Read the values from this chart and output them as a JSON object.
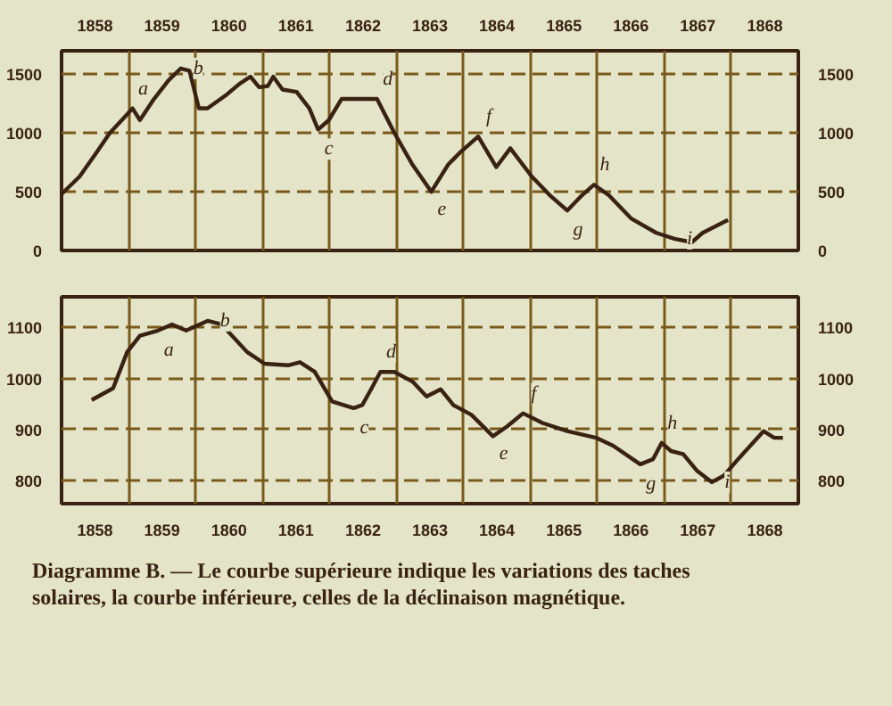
{
  "chart_data": [
    {
      "type": "line",
      "xlim": [
        1858,
        1869
      ],
      "xticks": [
        {
          "value": 1858.5,
          "label": "1858"
        },
        {
          "value": 1859.5,
          "label": "1859"
        },
        {
          "value": 1860.5,
          "label": "1860"
        },
        {
          "value": 1861.5,
          "label": "1861"
        },
        {
          "value": 1862.5,
          "label": "1862"
        },
        {
          "value": 1863.5,
          "label": "1863"
        },
        {
          "value": 1864.5,
          "label": "1864"
        },
        {
          "value": 1865.5,
          "label": "1865"
        },
        {
          "value": 1866.5,
          "label": "1866"
        },
        {
          "value": 1867.5,
          "label": "1867"
        },
        {
          "value": 1868.5,
          "label": "1868"
        },
        {
          "value": 1859,
          "label": null
        },
        {
          "value": 1860,
          "label": null
        },
        {
          "value": 1861,
          "label": null
        },
        {
          "value": 1862,
          "label": null
        },
        {
          "value": 1863,
          "label": null
        },
        {
          "value": 1864,
          "label": null
        },
        {
          "value": 1865,
          "label": null
        },
        {
          "value": 1866,
          "label": null
        },
        {
          "value": 1867,
          "label": null
        },
        {
          "value": 1868,
          "label": null
        }
      ],
      "ylim": [
        0,
        1700
      ],
      "yticks": [
        0,
        500,
        1000,
        1500
      ],
      "y2lim": [
        0,
        1700
      ],
      "y2ticks": [
        0,
        500,
        1000,
        1500
      ],
      "grid": true,
      "series": [
        {
          "color": "#3a2212",
          "x": [
            1858.0,
            1858.27,
            1858.53,
            1858.72,
            1858.98,
            1859.06,
            1859.17,
            1859.38,
            1859.6,
            1859.78,
            1859.91,
            1860.05,
            1860.18,
            1860.45,
            1860.66,
            1860.82,
            1860.95,
            1861.08,
            1861.16,
            1861.3,
            1861.51,
            1861.7,
            1861.83,
            1861.99,
            1862.18,
            1862.44,
            1862.71,
            1862.97,
            1863.24,
            1863.52,
            1863.77,
            1863.96,
            1864.22,
            1864.49,
            1864.7,
            1865.02,
            1865.29,
            1865.55,
            1865.77,
            1865.95,
            1866.17,
            1866.51,
            1866.88,
            1867.15,
            1867.41,
            1867.57,
            1867.95
          ],
          "values": [
            480,
            630,
            840,
            1000,
            1160,
            1210,
            1110,
            1290,
            1450,
            1550,
            1530,
            1210,
            1210,
            1320,
            1420,
            1480,
            1390,
            1400,
            1480,
            1370,
            1350,
            1210,
            1030,
            1110,
            1290,
            1290,
            1290,
            1000,
            730,
            500,
            730,
            840,
            970,
            710,
            870,
            630,
            470,
            340,
            470,
            560,
            470,
            270,
            150,
            100,
            70,
            150,
            260
          ]
        }
      ],
      "annotations": [
        {
          "text": "a",
          "x": 1859.06,
          "y": 1210
        },
        {
          "text": "b",
          "x": 1859.78,
          "y": 1550
        },
        {
          "text": "c",
          "x": 1861.83,
          "y": 1030
        },
        {
          "text": "d",
          "x": 1862.71,
          "y": 1290
        },
        {
          "text": "e",
          "x": 1863.52,
          "y": 500
        },
        {
          "text": "f",
          "x": 1864.22,
          "y": 970
        },
        {
          "text": "g",
          "x": 1865.55,
          "y": 340
        },
        {
          "text": "h",
          "x": 1865.95,
          "y": 560
        },
        {
          "text": "i",
          "x": 1867.15,
          "y": 100
        }
      ]
    },
    {
      "type": "line",
      "xlim": [
        1858,
        1869
      ],
      "xticks": [
        {
          "value": 1858.5,
          "label": "1858"
        },
        {
          "value": 1859.5,
          "label": "1859"
        },
        {
          "value": 1860.5,
          "label": "1860"
        },
        {
          "value": 1861.5,
          "label": "1861"
        },
        {
          "value": 1862.5,
          "label": "1862"
        },
        {
          "value": 1863.5,
          "label": "1863"
        },
        {
          "value": 1864.5,
          "label": "1864"
        },
        {
          "value": 1865.5,
          "label": "1865"
        },
        {
          "value": 1866.5,
          "label": "1866"
        },
        {
          "value": 1867.5,
          "label": "1867"
        },
        {
          "value": 1868.5,
          "label": "1868"
        },
        {
          "value": 1859,
          "label": null
        },
        {
          "value": 1860,
          "label": null
        },
        {
          "value": 1861,
          "label": null
        },
        {
          "value": 1862,
          "label": null
        },
        {
          "value": 1863,
          "label": null
        },
        {
          "value": 1864,
          "label": null
        },
        {
          "value": 1865,
          "label": null
        },
        {
          "value": 1866,
          "label": null
        },
        {
          "value": 1867,
          "label": null
        },
        {
          "value": 1868,
          "label": null
        }
      ],
      "ylim": [
        755,
        1160
      ],
      "yticks": [
        800,
        900,
        1000,
        1100
      ],
      "y2lim": [
        755,
        1160
      ],
      "y2ticks": [
        800,
        900,
        1000,
        1100
      ],
      "grid": true,
      "series": [
        {
          "color": "#3a2212",
          "x": [
            1858.45,
            1858.77,
            1858.98,
            1859.17,
            1859.44,
            1859.65,
            1859.86,
            1860.18,
            1860.39,
            1860.77,
            1861.03,
            1861.38,
            1861.56,
            1861.78,
            1862.04,
            1862.36,
            1862.49,
            1862.63,
            1862.76,
            1862.97,
            1863.24,
            1863.45,
            1863.66,
            1863.85,
            1864.12,
            1864.44,
            1864.65,
            1864.89,
            1865.18,
            1865.55,
            1865.98,
            1866.24,
            1866.64,
            1866.83,
            1866.96,
            1867.1,
            1867.28,
            1867.49,
            1867.71,
            1867.89,
            1868.1,
            1868.48,
            1868.64,
            1868.77
          ],
          "values": [
            958,
            981,
            1052,
            1084,
            1094,
            1106,
            1094,
            1113,
            1106,
            1052,
            1029,
            1026,
            1032,
            1013,
            955,
            942,
            948,
            981,
            1013,
            1013,
            994,
            965,
            979,
            948,
            929,
            887,
            906,
            932,
            913,
            897,
            884,
            868,
            832,
            842,
            874,
            858,
            852,
            819,
            797,
            810,
            842,
            897,
            884,
            884
          ]
        }
      ],
      "annotations": [
        {
          "text": "a",
          "x": 1859.44,
          "y": 1094
        },
        {
          "text": "b",
          "x": 1860.18,
          "y": 1113
        },
        {
          "text": "c",
          "x": 1862.36,
          "y": 942
        },
        {
          "text": "d",
          "x": 1862.76,
          "y": 1013
        },
        {
          "text": "e",
          "x": 1864.44,
          "y": 887
        },
        {
          "text": "f",
          "x": 1864.89,
          "y": 932
        },
        {
          "text": "g",
          "x": 1866.64,
          "y": 832
        },
        {
          "text": "h",
          "x": 1866.96,
          "y": 874
        },
        {
          "text": "i",
          "x": 1867.71,
          "y": 797
        },
        "Diagramme B. — Le courbe supérieure indique les variations des taches solaires, la courbe inférieure, celles de la déclinaison magnétique."
      ]
    }
  ]
}
